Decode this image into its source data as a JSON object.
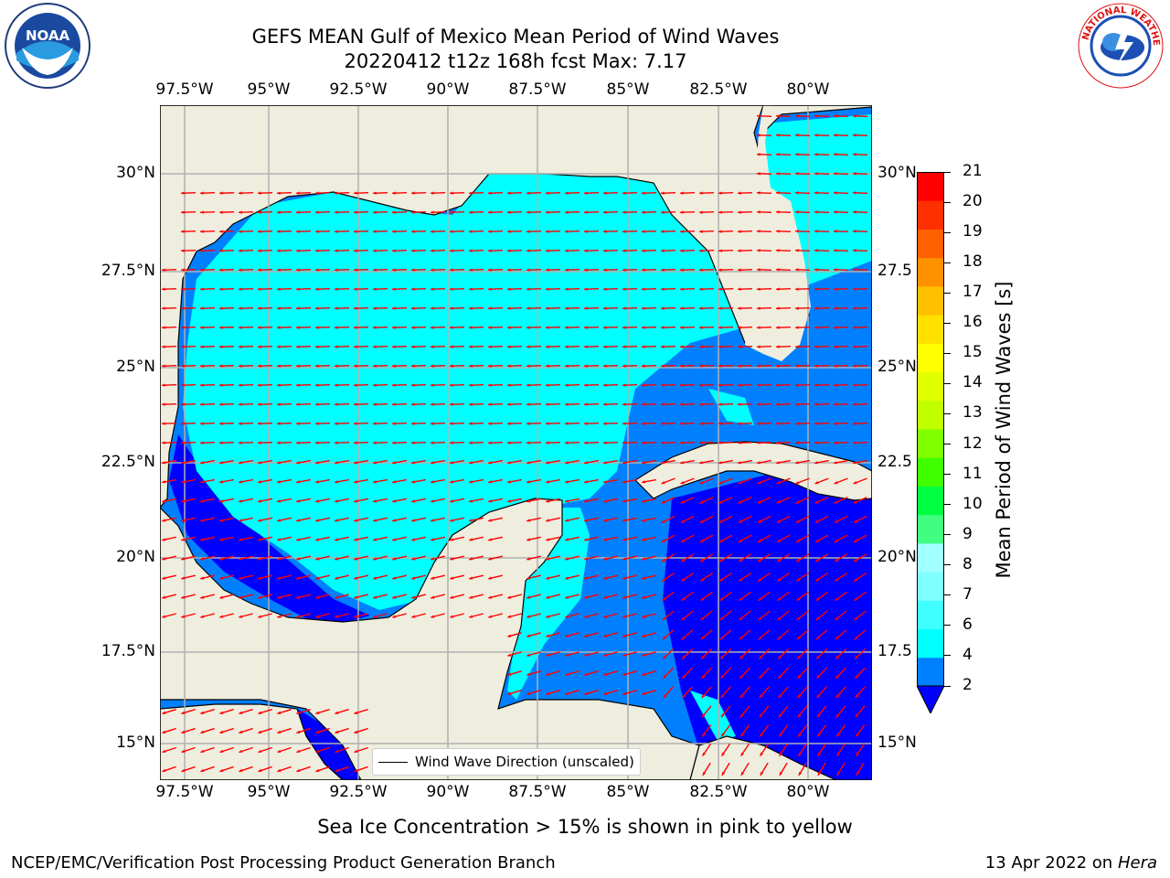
{
  "header": {
    "title_line1": "GEFS MEAN Gulf of Mexico Mean Period of Wind Waves",
    "title_line2": "20220412 t12z 168h fcst   Max: 7.17"
  },
  "map": {
    "lon_ticks": [
      "97.5°W",
      "95°W",
      "92.5°W",
      "90°W",
      "87.5°W",
      "85°W",
      "82.5°W",
      "80°W"
    ],
    "lat_ticks_left": [
      "30°N",
      "27.5°N",
      "25°N",
      "22.5°N",
      "20°N",
      "17.5°N",
      "15°N"
    ],
    "lat_ticks_right": [
      "30°N",
      "27.5",
      "25°N",
      "22.5",
      "20°N",
      "17.5",
      "15°N"
    ],
    "land_color": "#efedde",
    "ocean_shallow_color": "#00ffff",
    "ocean_mid_color": "#0080ff",
    "ocean_deep_color": "#0000ff",
    "arrow_color": "#ff0000",
    "legend_label": "Wind Wave Direction (unscaled)"
  },
  "colorbar": {
    "label": "Mean Period of Wind Waves [s]",
    "ticks": [
      "2",
      "4",
      "6",
      "7",
      "8",
      "9",
      "10",
      "11",
      "12",
      "13",
      "14",
      "15",
      "16",
      "17",
      "18",
      "19",
      "20",
      "21"
    ],
    "colors": [
      "#0080ff",
      "#00ffff",
      "#40ffff",
      "#80ffff",
      "#a0ffff",
      "#40ff80",
      "#00ff40",
      "#40ff00",
      "#80ff00",
      "#c0ff00",
      "#e0ff00",
      "#ffff00",
      "#ffe000",
      "#ffc000",
      "#ff9000",
      "#ff6000",
      "#ff3000",
      "#ff0000"
    ],
    "extend_color": "#0000ff"
  },
  "footer": {
    "sea_ice_note": "Sea Ice Concentration > 15% is shown in pink to yellow",
    "org": "NCEP/EMC/Verification Post Processing Product Generation Branch",
    "date": "13 Apr 2022 on",
    "machine": "Hera"
  },
  "logos": {
    "left_icon": "noaa-logo",
    "right_icon": "nws-logo",
    "left_text": "NOAA",
    "right_text": "NATIONAL WEATHER SERVICE"
  }
}
